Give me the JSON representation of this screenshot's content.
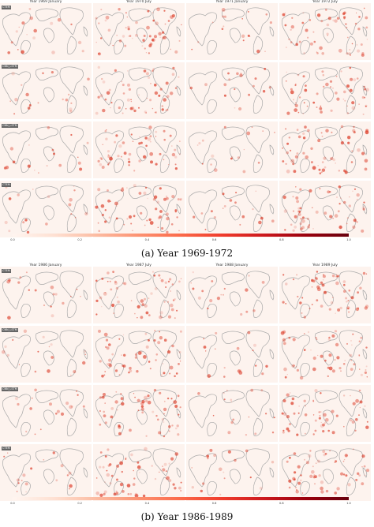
{
  "figure": {
    "panels": [
      {
        "caption": "(a) Year 1969-1972",
        "column_titles": [
          "Year 1969 January",
          "Year 1970 July",
          "Year 1971 January",
          "Year 1972 July"
        ],
        "row_labels": [
          "CTEM",
          "CNN_LSTM",
          "CNN_LSTM",
          "CTEM"
        ]
      },
      {
        "caption": "(b) Year 1986-1989",
        "column_titles": [
          "Year 1986 January",
          "Year 1987 July",
          "Year 1988 January",
          "Year 1989 July"
        ],
        "row_labels": [
          "CTEM",
          "CNN_LSTM",
          "CNN_LSTM",
          "CTEM"
        ]
      }
    ],
    "colorbar": {
      "ticks": [
        "0.0",
        "0.2",
        "0.4",
        "0.6",
        "0.8",
        "1.0"
      ],
      "colormap": "Reds"
    }
  }
}
